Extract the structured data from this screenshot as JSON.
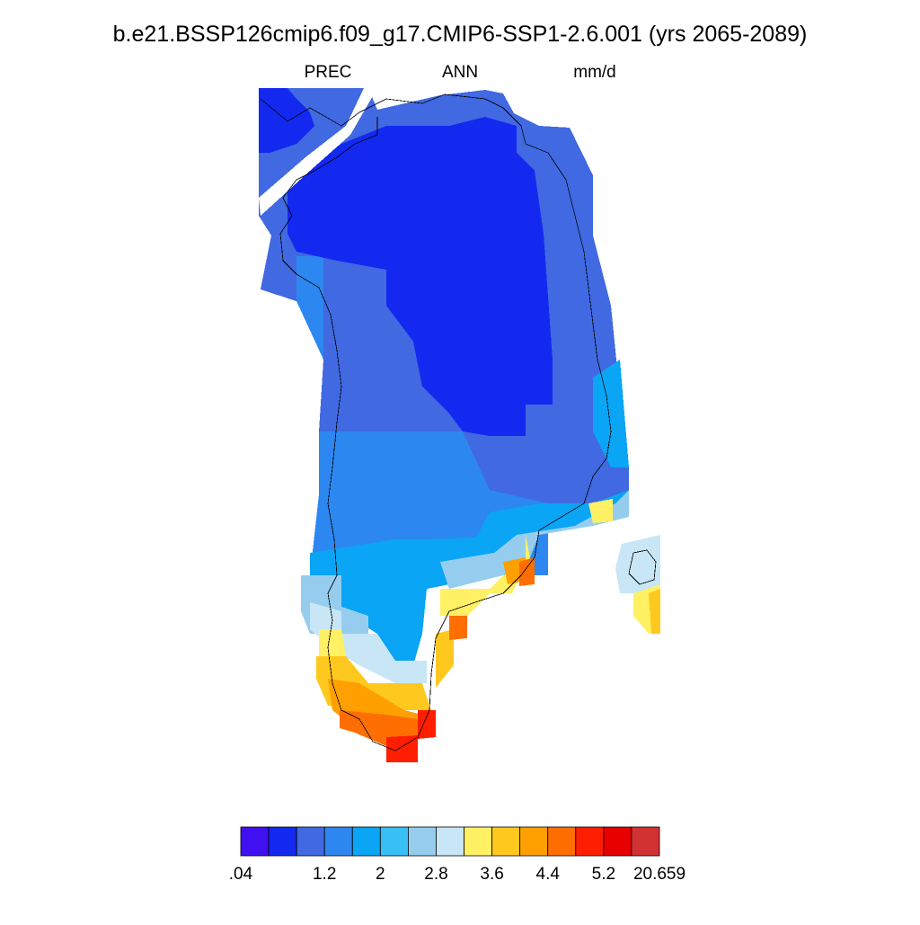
{
  "title": "b.e21.BSSP126cmip6.f09_g17.CMIP6-SSP1-2.6.001 (yrs 2065-2089)",
  "subtitle": {
    "left": "PREC",
    "center": "ANN",
    "right": "mm/d"
  },
  "colorbar": {
    "colors": [
      "#4010f0",
      "#1429f0",
      "#4169e1",
      "#2d87f0",
      "#0aa5f5",
      "#38c0f5",
      "#96cdef",
      "#c8e6f5",
      "#fff064",
      "#ffc81e",
      "#ffa000",
      "#ff6e00",
      "#ff1e00",
      "#e60000",
      "#d23232"
    ],
    "labels": [
      {
        "value": 0.04,
        "label": ".04"
      },
      1.2,
      2,
      2.8,
      3.6,
      4.4,
      5.2,
      20.659
    ]
  }
}
